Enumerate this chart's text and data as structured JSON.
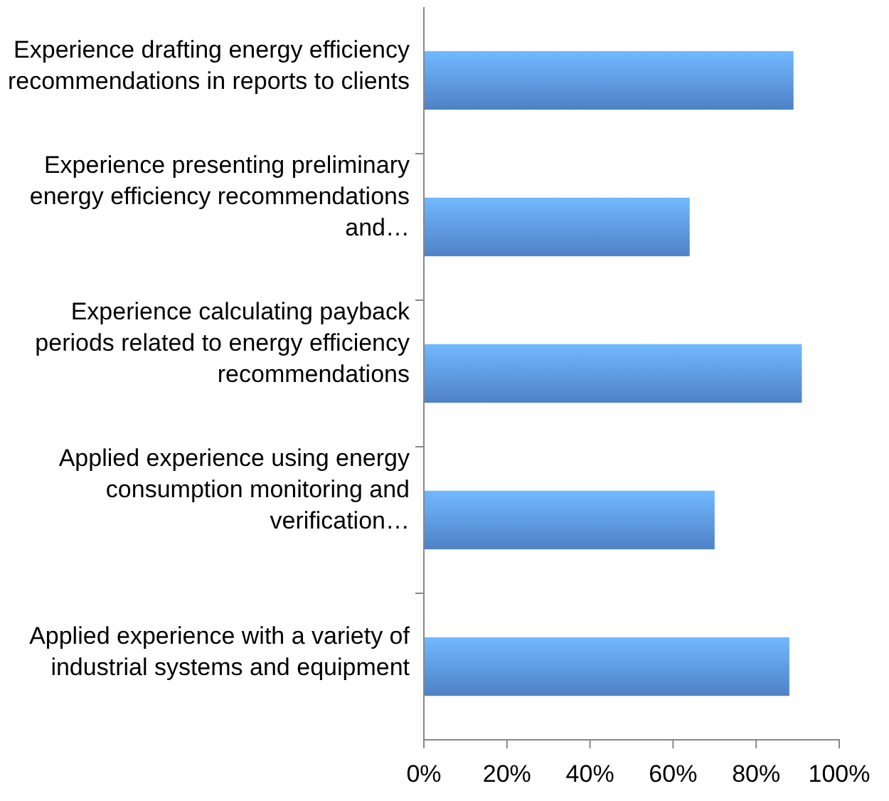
{
  "chart_data": {
    "type": "bar",
    "orientation": "horizontal",
    "categories": [
      "Experience drafting energy efficiency recommendations in reports to clients",
      "Experience presenting preliminary energy efficiency recommendations and…",
      "Experience calculating payback periods related to energy efficiency recommendations",
      "Applied experience using energy consumption monitoring and verification…",
      "Applied experience with a variety of industrial systems and equipment"
    ],
    "values": [
      0.89,
      0.64,
      0.91,
      0.7,
      0.88
    ],
    "color": "#5b95e3",
    "xlim": [
      0,
      1
    ],
    "xticks": [
      {
        "value": 0,
        "label": "0%"
      },
      {
        "value": 0.2,
        "label": "20%"
      },
      {
        "value": 0.4,
        "label": "40%"
      },
      {
        "value": 0.6,
        "label": "60%"
      },
      {
        "value": 0.8,
        "label": "80%"
      },
      {
        "value": 1,
        "label": "100%"
      }
    ]
  }
}
